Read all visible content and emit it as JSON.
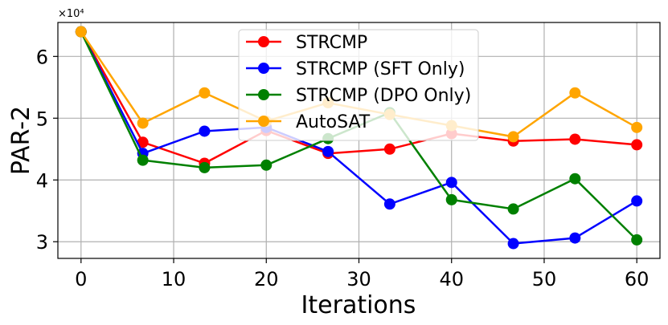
{
  "chart_data": {
    "type": "line",
    "title": "",
    "xlabel": "Iterations",
    "ylabel": "PAR-2",
    "y_scale_label": "×10⁴",
    "xlim": [
      -2.5,
      62.5
    ],
    "ylim": [
      2.73,
      6.55
    ],
    "xticks": [
      0,
      10,
      20,
      30,
      40,
      50,
      60
    ],
    "yticks": [
      3,
      4,
      5,
      6
    ],
    "xtick_labels": [
      "0",
      "10",
      "20",
      "30",
      "40",
      "50",
      "60"
    ],
    "ytick_labels": [
      "3",
      "4",
      "5",
      "6"
    ],
    "grid": true,
    "legend_position": "upper-center",
    "x": [
      0,
      6.67,
      13.33,
      20,
      26.67,
      33.33,
      40,
      46.67,
      53.33,
      60
    ],
    "series": [
      {
        "name": "STRCMP",
        "color": "#ff0000",
        "values": [
          6.4,
          4.61,
          4.27,
          4.8,
          4.43,
          4.5,
          4.75,
          4.63,
          4.66,
          4.57
        ]
      },
      {
        "name": "STRCMP (SFT Only)",
        "color": "#0000ff",
        "values": [
          6.4,
          4.43,
          4.79,
          4.85,
          4.46,
          3.61,
          3.96,
          2.97,
          3.06,
          3.66
        ]
      },
      {
        "name": "STRCMP (DPO Only)",
        "color": "#008000",
        "values": [
          6.4,
          4.32,
          4.2,
          4.24,
          4.67,
          5.09,
          3.68,
          3.53,
          4.02,
          3.03
        ]
      },
      {
        "name": "AutoSAT",
        "color": "#ffa500",
        "values": [
          6.4,
          4.92,
          5.41,
          4.95,
          5.25,
          5.06,
          4.88,
          4.7,
          5.41,
          4.85
        ]
      }
    ]
  }
}
